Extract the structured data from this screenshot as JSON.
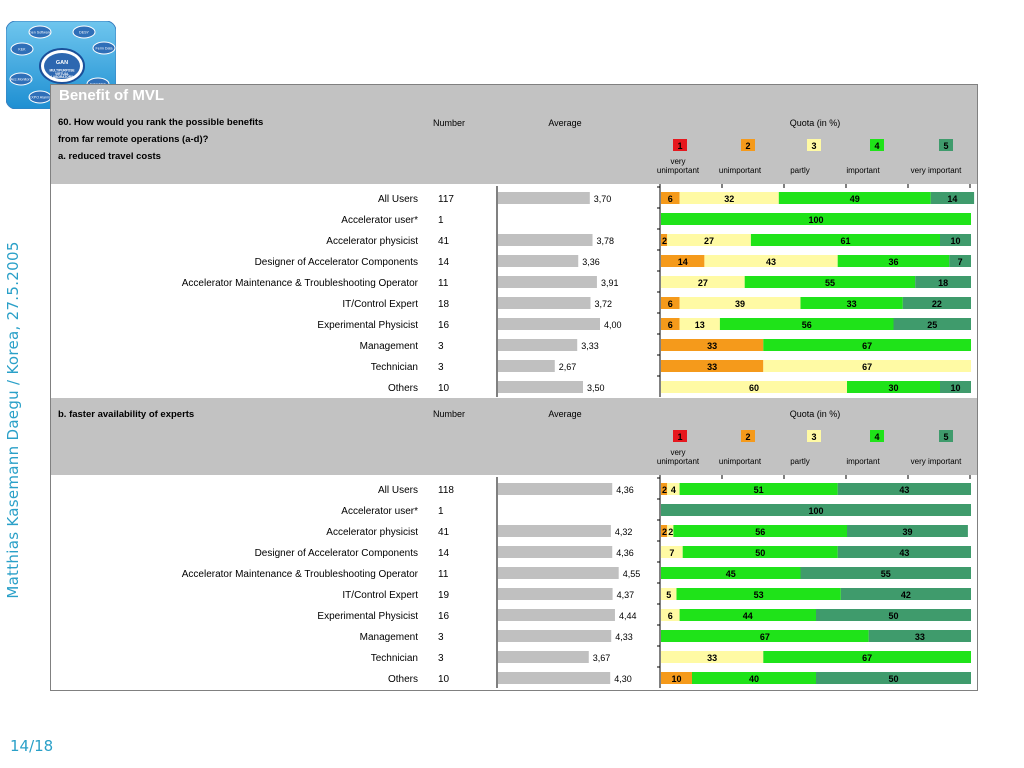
{
  "side_label": "Matthias Kasemann   Daegu / Korea, 27.5.2005",
  "page_number": "14/18",
  "logo_text": {
    "center": [
      "GAN",
      "MULTIPURPOSE",
      "VIRTUAL",
      "LABORATORY"
    ],
    "bubbles": [
      "Gen Software",
      "DESY",
      "KEK",
      "Ferm Data",
      "Acc.Monitors",
      "DIAGTRA",
      "EXPO Alarms"
    ]
  },
  "panel_title": "Benefit of MVL",
  "colors": {
    "q1": "#e6181e",
    "q2": "#f59a1b",
    "q3": "#fffaa4",
    "q4": "#1fe319",
    "q5": "#3f9b6c",
    "avg_bar": "#c0c0c0",
    "header_bg": "#c2c2c2",
    "side_text": "#2aa0c8"
  },
  "chart_data": [
    {
      "type": "bar",
      "question": [
        "60. How would you rank the possible benefits",
        "from far remote operations (a-d)?"
      ],
      "subtitle": "a. reduced travel costs",
      "col_number": "Number",
      "col_average": "Average",
      "quota_header": "Quota (in %)",
      "scale_codes": [
        "1",
        "2",
        "3",
        "4",
        "5"
      ],
      "scale_labels": [
        [
          "very",
          "unimportant"
        ],
        [
          "unimportant"
        ],
        [
          "partly"
        ],
        [
          "important"
        ],
        [
          "very important"
        ]
      ],
      "average_axis": [
        1,
        5
      ],
      "rows": [
        {
          "group": "All Users",
          "number": "117",
          "average": "3,70",
          "quota": [
            0,
            6,
            32,
            49,
            14
          ]
        },
        {
          "group": "Accelerator user*",
          "number": "1",
          "average": "",
          "quota": [
            0,
            0,
            0,
            100,
            0
          ]
        },
        {
          "group": "Accelerator physicist",
          "number": "41",
          "average": "3,78",
          "quota": [
            0,
            2,
            27,
            61,
            10
          ]
        },
        {
          "group": "Designer of Accelerator Components",
          "number": "14",
          "average": "3,36",
          "quota": [
            0,
            14,
            43,
            36,
            7
          ]
        },
        {
          "group": "Accelerator Maintenance & Troubleshooting Operator",
          "number": "11",
          "average": "3,91",
          "quota": [
            0,
            0,
            27,
            55,
            18
          ]
        },
        {
          "group": "IT/Control Expert",
          "number": "18",
          "average": "3,72",
          "quota": [
            0,
            6,
            39,
            33,
            22
          ]
        },
        {
          "group": "Experimental Physicist",
          "number": "16",
          "average": "4,00",
          "quota": [
            0,
            6,
            13,
            56,
            25
          ]
        },
        {
          "group": "Management",
          "number": "3",
          "average": "3,33",
          "quota": [
            0,
            33,
            0,
            67,
            0
          ]
        },
        {
          "group": "Technician",
          "number": "3",
          "average": "2,67",
          "quota": [
            0,
            33,
            67,
            0,
            0
          ]
        },
        {
          "group": "Others",
          "number": "10",
          "average": "3,50",
          "quota": [
            0,
            0,
            60,
            30,
            10
          ]
        }
      ]
    },
    {
      "type": "bar",
      "question": [],
      "subtitle": "b. faster availability of experts",
      "col_number": "Number",
      "col_average": "Average",
      "quota_header": "Quota (in %)",
      "scale_codes": [
        "1",
        "2",
        "3",
        "4",
        "5"
      ],
      "scale_labels": [
        [
          "very",
          "unimportant"
        ],
        [
          "unimportant"
        ],
        [
          "partly"
        ],
        [
          "important"
        ],
        [
          "very important"
        ]
      ],
      "average_axis": [
        1,
        5
      ],
      "rows": [
        {
          "group": "All Users",
          "number": "118",
          "average": "4,36",
          "quota": [
            0,
            2,
            4,
            51,
            43
          ]
        },
        {
          "group": "Accelerator user*",
          "number": "1",
          "average": "",
          "quota": [
            0,
            0,
            0,
            0,
            100
          ]
        },
        {
          "group": "Accelerator physicist",
          "number": "41",
          "average": "4,32",
          "quota": [
            0,
            2,
            2,
            56,
            39
          ]
        },
        {
          "group": "Designer of Accelerator Components",
          "number": "14",
          "average": "4,36",
          "quota": [
            0,
            0,
            7,
            50,
            43
          ]
        },
        {
          "group": "Accelerator Maintenance & Troubleshooting Operator",
          "number": "11",
          "average": "4,55",
          "quota": [
            0,
            0,
            0,
            45,
            55
          ]
        },
        {
          "group": "IT/Control Expert",
          "number": "19",
          "average": "4,37",
          "quota": [
            0,
            0,
            5,
            53,
            42
          ]
        },
        {
          "group": "Experimental Physicist",
          "number": "16",
          "average": "4,44",
          "quota": [
            0,
            0,
            6,
            44,
            50
          ]
        },
        {
          "group": "Management",
          "number": "3",
          "average": "4,33",
          "quota": [
            0,
            0,
            0,
            67,
            33
          ]
        },
        {
          "group": "Technician",
          "number": "3",
          "average": "3,67",
          "quota": [
            0,
            0,
            33,
            67,
            0
          ]
        },
        {
          "group": "Others",
          "number": "10",
          "average": "4,30",
          "quota": [
            0,
            10,
            0,
            40,
            50
          ]
        }
      ]
    }
  ]
}
